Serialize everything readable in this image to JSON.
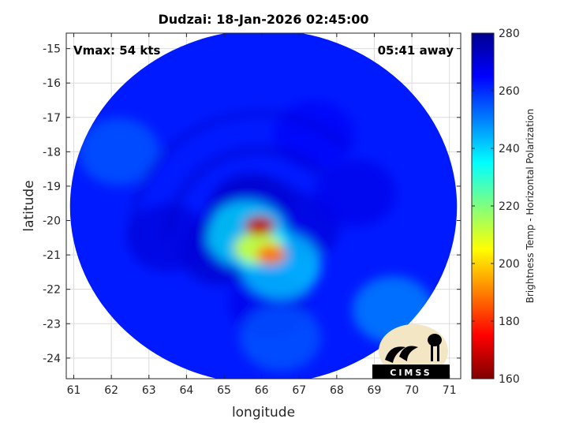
{
  "chart_data": {
    "type": "heatmap",
    "title": "Dudzai: 18-Jan-2026 02:45:00",
    "xlabel": "longitude",
    "ylabel": "latitude",
    "xlim": [
      60.8,
      71.3
    ],
    "ylim": [
      -24.6,
      -14.55
    ],
    "xticks": [
      61,
      62,
      63,
      64,
      65,
      66,
      67,
      68,
      69,
      70,
      71
    ],
    "yticks": [
      -15,
      -16,
      -17,
      -18,
      -19,
      -20,
      -21,
      -22,
      -23,
      -24
    ],
    "grid": true,
    "annotations": {
      "top_left": "Vmax: 54 kts",
      "top_right": "05:41 away"
    },
    "colorbar": {
      "label": "Brightness Temp - Horizontal Polarization",
      "min": 160,
      "max": 280,
      "ticks": [
        280,
        260,
        240,
        220,
        200,
        180,
        160
      ],
      "colormap": "jet"
    },
    "swath_center": [
      66.05,
      -19.6
    ],
    "swath_radius_deg": [
      5.15,
      5.15
    ],
    "storm_center": [
      65.95,
      -20.5
    ],
    "background_temp": 262,
    "features": [
      {
        "lon": 65.95,
        "lat": -20.15,
        "temp": 168
      },
      {
        "lon": 66.25,
        "lat": -21.0,
        "temp": 188
      },
      {
        "lon": 65.9,
        "lat": -20.8,
        "temp": 212
      },
      {
        "lon": 65.6,
        "lat": -20.4,
        "temp": 235
      },
      {
        "lon": 66.5,
        "lat": -21.3,
        "temp": 238
      },
      {
        "lon": 65.7,
        "lat": -19.6,
        "temp": 272
      },
      {
        "lon": 64.9,
        "lat": -20.9,
        "temp": 272
      },
      {
        "lon": 67.0,
        "lat": -20.2,
        "temp": 270
      },
      {
        "lon": 66.2,
        "lat": -22.4,
        "temp": 268
      },
      {
        "lon": 63.5,
        "lat": -20.5,
        "temp": 270
      },
      {
        "lon": 68.5,
        "lat": -19.2,
        "temp": 268
      },
      {
        "lon": 67.4,
        "lat": -17.5,
        "temp": 266
      },
      {
        "lon": 69.5,
        "lat": -22.6,
        "temp": 248
      },
      {
        "lon": 66.5,
        "lat": -23.4,
        "temp": 254
      },
      {
        "lon": 62.2,
        "lat": -18.0,
        "temp": 254
      }
    ]
  },
  "logo": {
    "text": "CIMSS"
  }
}
